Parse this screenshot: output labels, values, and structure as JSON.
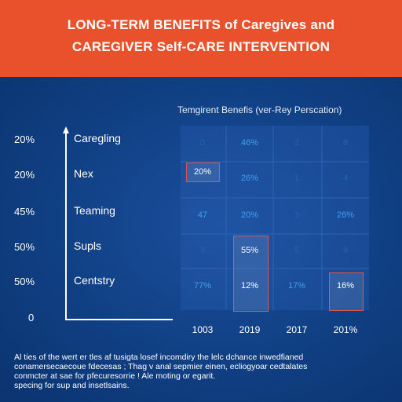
{
  "header": {
    "title_line1": "LONG-TERM BENEFITS of Caregives and",
    "title_line2": "CAREGIVER Self-CARE INTERVENTION",
    "accent_color": "#e9512c",
    "background_color": "#0d3a78"
  },
  "chart_data": {
    "type": "table",
    "subtitle": "Temgirent Benefis (ver-Rey Perscation)",
    "y_axis_labels": [
      "20%",
      "20%",
      "45%",
      "50%",
      "50%",
      "0"
    ],
    "row_labels": [
      "Caregling",
      "Nex",
      "Teaming",
      "Supls",
      "Centstry"
    ],
    "columns": [
      "1003",
      "2019",
      "2017",
      "201%"
    ],
    "cells": [
      [
        "0",
        "46%",
        "2",
        "8"
      ],
      [
        "20%",
        "26%",
        "1",
        "4"
      ],
      [
        "47",
        "20%",
        "3",
        "26%"
      ],
      [
        "9",
        "55%",
        "5",
        "9"
      ],
      [
        "77%",
        "12%",
        "17%",
        "16%"
      ]
    ],
    "highlighted_cells": [
      [
        1,
        0
      ],
      [
        3,
        1
      ],
      [
        4,
        1
      ],
      [
        4,
        3
      ]
    ],
    "highlight_color": "#e0574a"
  },
  "footer": {
    "lines": [
      "Al ties of the wert er tles af tusigta losef incomdiry the lelc dchance inwedfianed",
      "conamersecaecoue fdecesas ; Thag v anal sepmier einen, ecliogyoar cedtalates",
      "conmcter at sae for pfecuresorrie ! Ale moting or egarit.",
      "specing for sup and insetlsains."
    ]
  }
}
